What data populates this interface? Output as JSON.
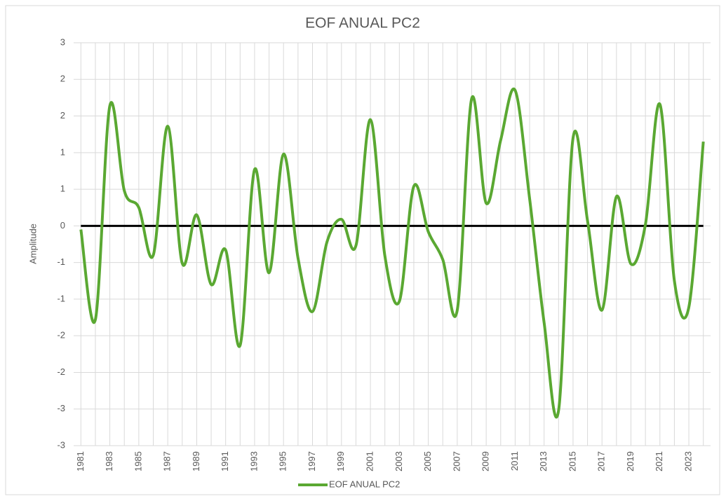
{
  "chart_data": {
    "type": "line",
    "title": "EOF ANUAL PC2",
    "y_label": "Amplitude",
    "categories": [
      "1981",
      null,
      "1983",
      null,
      "1985",
      null,
      "1987",
      null,
      "1989",
      null,
      "1991",
      null,
      "1993",
      null,
      "1995",
      null,
      "1997",
      null,
      "1999",
      null,
      "2001",
      null,
      "2003",
      null,
      "2005",
      null,
      "2007",
      null,
      "2009",
      null,
      "2011",
      null,
      "2013",
      null,
      "2015",
      null,
      "2017",
      null,
      "2019",
      null,
      "2021",
      null,
      "2023",
      null
    ],
    "series": [
      {
        "name": "EOF ANUAL PC2",
        "color": "#5aa832",
        "values": [
          -0.05,
          -1.28,
          1.64,
          0.48,
          0.25,
          -0.4,
          1.36,
          -0.51,
          0.15,
          -0.8,
          -0.33,
          -1.63,
          0.77,
          -0.64,
          0.98,
          -0.44,
          -1.17,
          -0.22,
          0.09,
          -0.27,
          1.45,
          -0.41,
          -1.03,
          0.54,
          -0.08,
          -0.46,
          -1.15,
          1.74,
          0.31,
          1.17,
          1.85,
          0.37,
          -1.32,
          -2.52,
          1.2,
          0.07,
          -1.15,
          0.4,
          -0.52,
          0.02,
          1.66,
          -0.75,
          -1.11,
          1.15
        ]
      }
    ],
    "ylim": [
      -3,
      2.5
    ],
    "yticks": [
      {
        "value": -3,
        "label": "-3"
      },
      {
        "value": -2.5,
        "label": "-3"
      },
      {
        "value": -2,
        "label": "-2"
      },
      {
        "value": -1.5,
        "label": "-2"
      },
      {
        "value": -1,
        "label": "-1"
      },
      {
        "value": -0.5,
        "label": "-1"
      },
      0,
      {
        "value": 0.5,
        "label": "1"
      },
      1,
      {
        "value": 1.5,
        "label": "2"
      },
      2,
      {
        "value": 2.5,
        "label": "3"
      }
    ],
    "grid": true,
    "legend": "bottom"
  }
}
